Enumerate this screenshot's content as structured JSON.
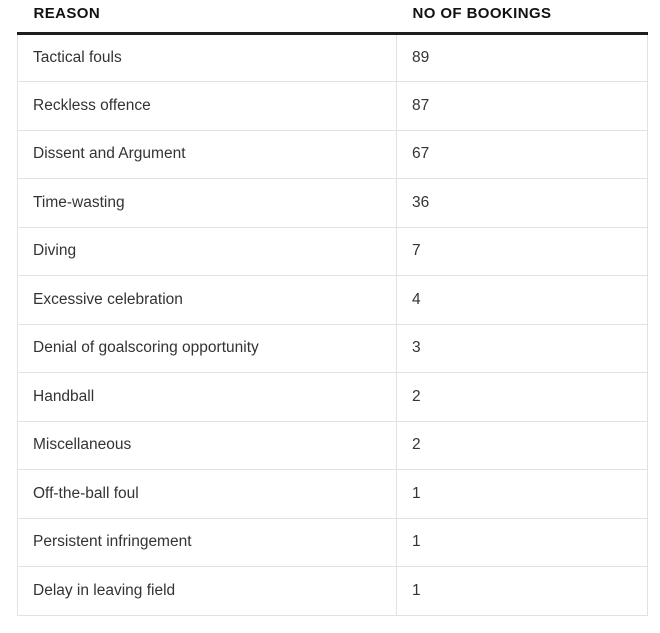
{
  "table": {
    "headers": [
      "REASON",
      "NO OF BOOKINGS"
    ],
    "rows": [
      [
        "Tactical fouls",
        "89"
      ],
      [
        "Reckless offence",
        "87"
      ],
      [
        "Dissent and Argument",
        "67"
      ],
      [
        "Time-wasting",
        "36"
      ],
      [
        "Diving",
        "7"
      ],
      [
        "Excessive celebration",
        "4"
      ],
      [
        "Denial of goalscoring opportunity",
        "3"
      ],
      [
        "Handball",
        "2"
      ],
      [
        "Miscellaneous",
        "2"
      ],
      [
        "Off-the-ball foul",
        "1"
      ],
      [
        "Persistent infringement",
        "1"
      ],
      [
        "Delay in leaving field",
        "1"
      ]
    ]
  },
  "colors": {
    "header_rule": "#1e1e1e",
    "cell_border": "#e2e2e2",
    "header_text": "#121212",
    "body_text": "#333333",
    "background": "#ffffff"
  },
  "chart_data": {
    "type": "table",
    "title": "",
    "columns": [
      "REASON",
      "NO OF BOOKINGS"
    ],
    "categories": [
      "Tactical fouls",
      "Reckless offence",
      "Dissent and Argument",
      "Time-wasting",
      "Diving",
      "Excessive celebration",
      "Denial of goalscoring opportunity",
      "Handball",
      "Miscellaneous",
      "Off-the-ball foul",
      "Persistent infringement",
      "Delay in leaving field"
    ],
    "values": [
      89,
      87,
      67,
      36,
      7,
      4,
      3,
      2,
      2,
      1,
      1,
      1
    ]
  }
}
